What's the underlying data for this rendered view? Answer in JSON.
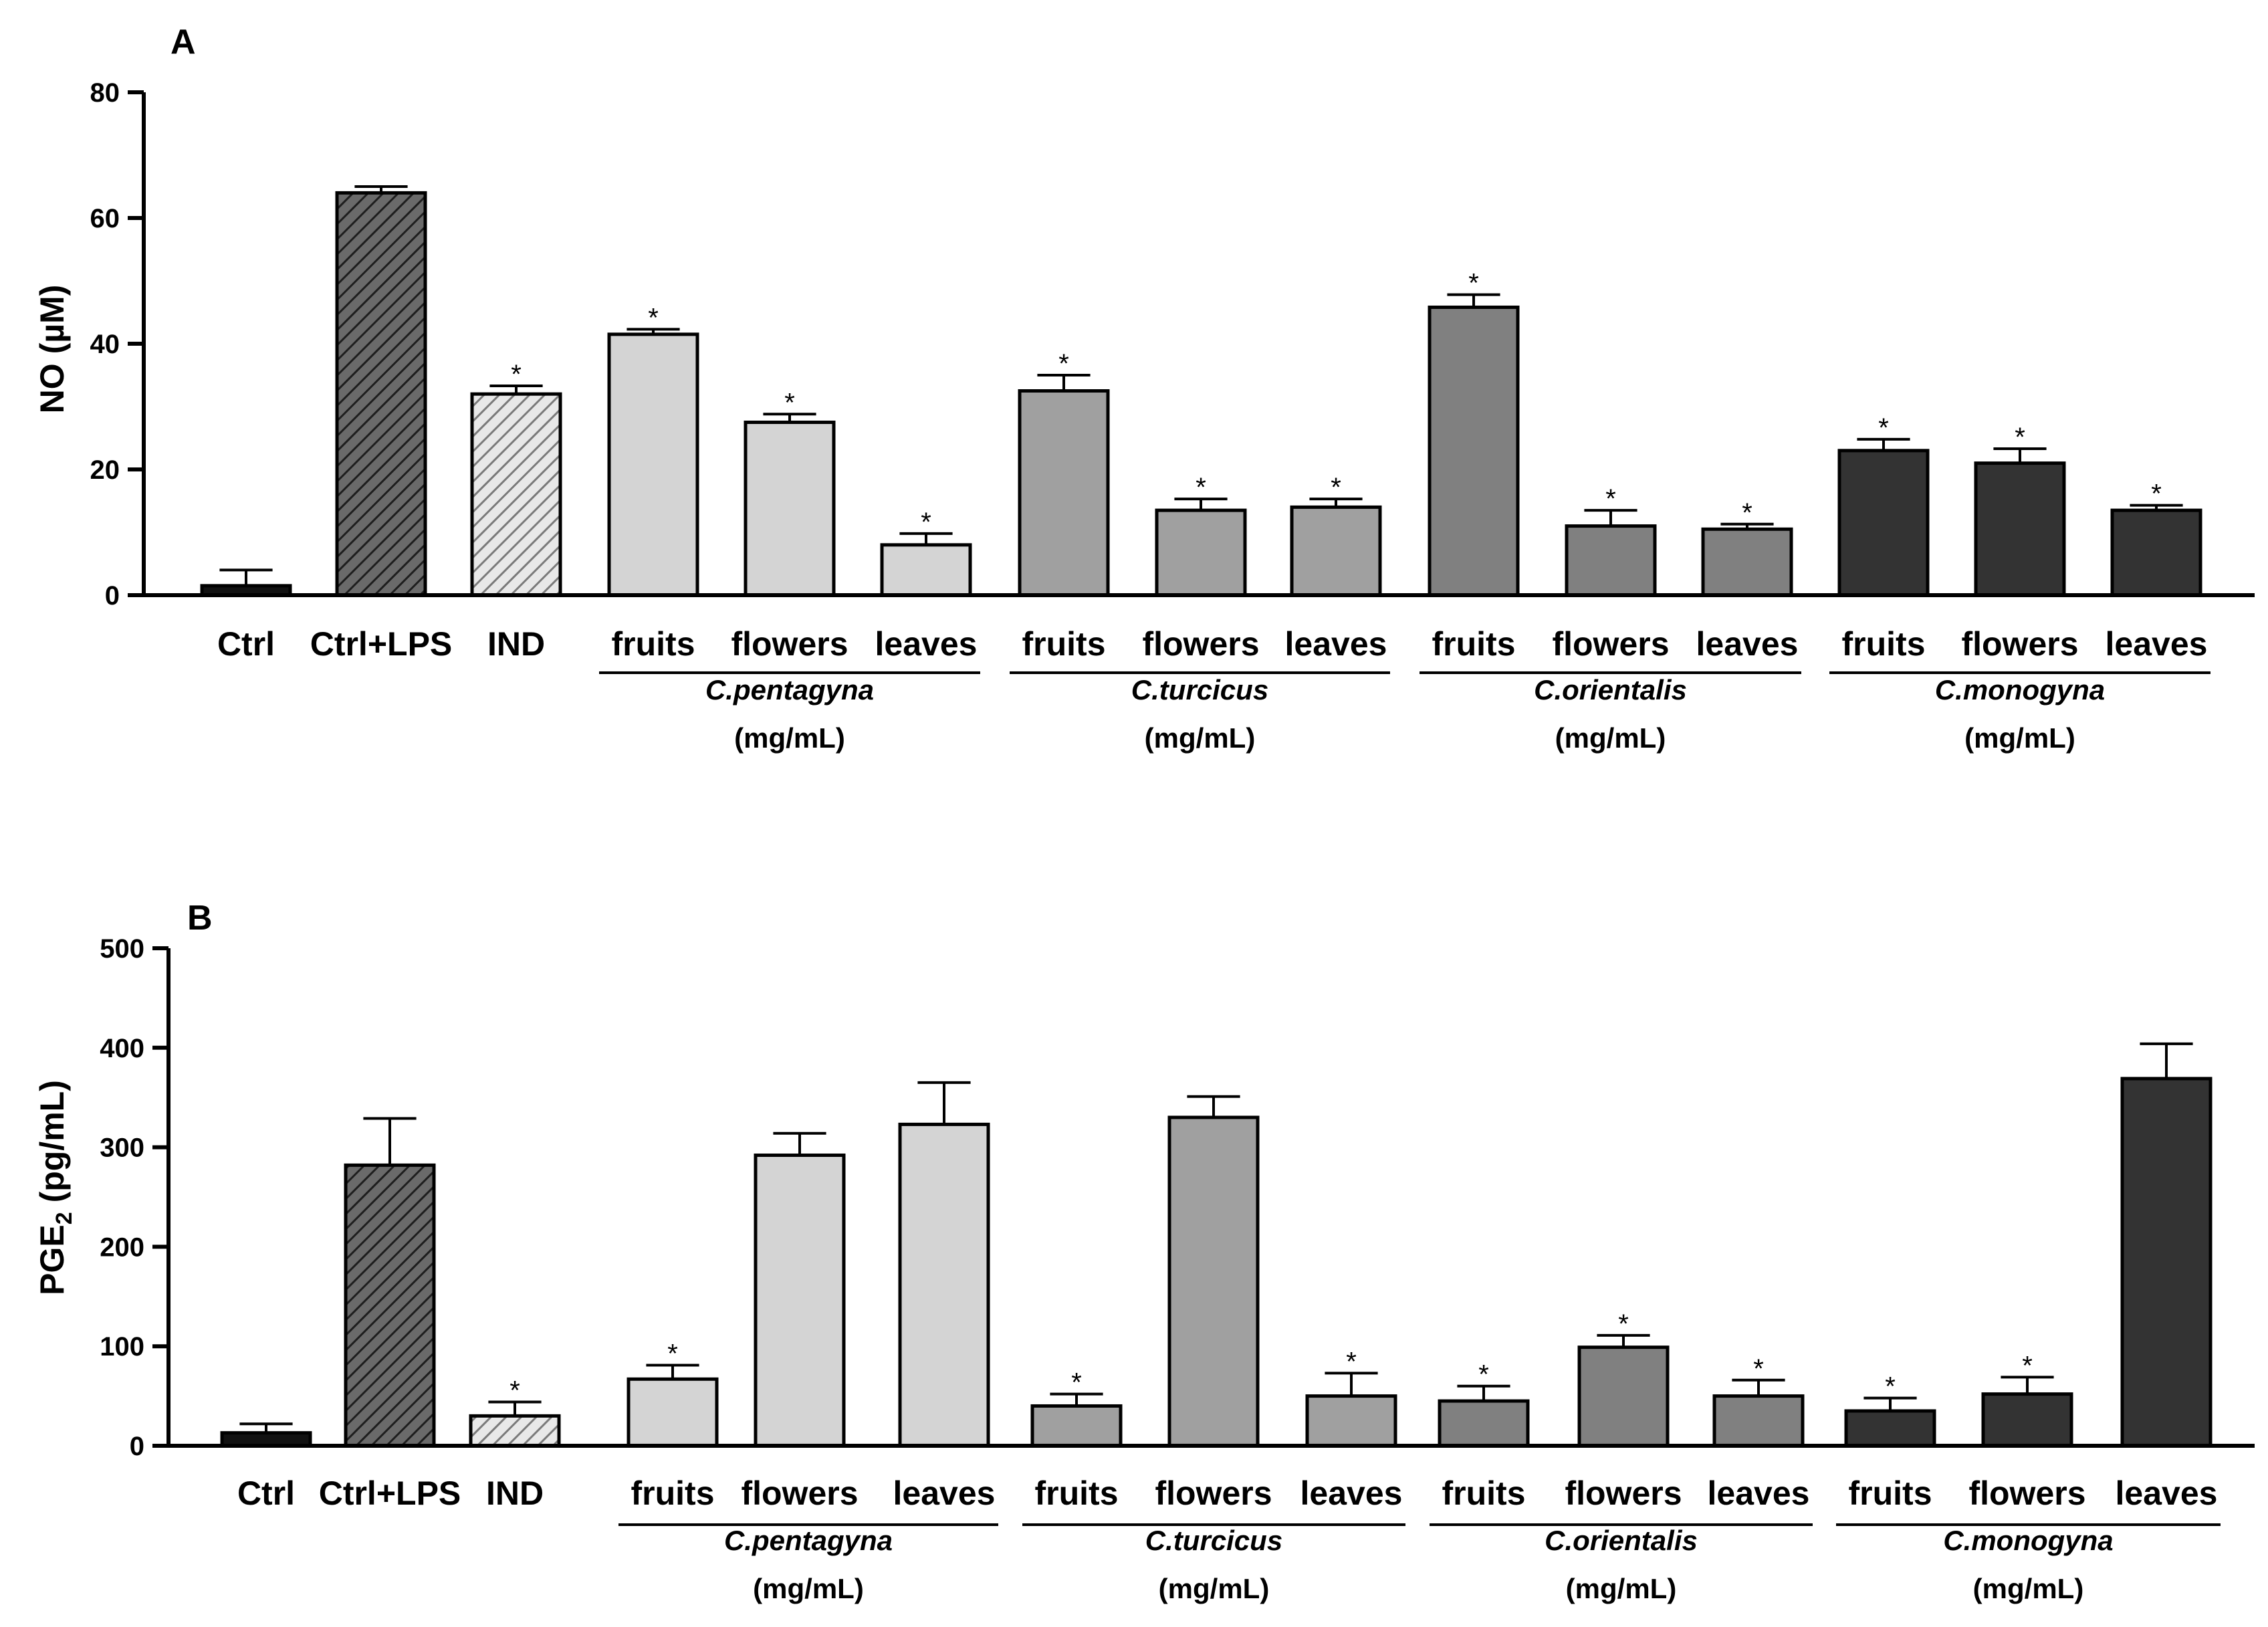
{
  "chart_data": [
    {
      "type": "bar",
      "panel_label": "A",
      "ylabel_main": "NO (µM)",
      "ylabel_sub": "",
      "ylabel_tail": "",
      "ylim": [
        0,
        80
      ],
      "yticks": [
        "0",
        "20",
        "40",
        "60",
        "80"
      ],
      "categories": [
        "Ctrl",
        "Ctrl+LPS",
        "IND",
        "fruits",
        "flowers",
        "leaves",
        "fruits",
        "flowers",
        "leaves",
        "fruits",
        "flowers",
        "leaves",
        "fruits",
        "flowers",
        "leaves"
      ],
      "values": [
        1.5,
        64,
        32,
        41.5,
        27.5,
        8,
        32.5,
        13.5,
        14,
        45.8,
        11,
        10.5,
        23,
        21,
        13.5
      ],
      "errors": [
        2.5,
        1,
        1.3,
        0.8,
        1.3,
        1.8,
        2.5,
        1.8,
        1.3,
        2,
        2.5,
        0.8,
        1.8,
        2.3,
        0.8
      ],
      "significant": [
        false,
        false,
        true,
        true,
        true,
        true,
        true,
        true,
        true,
        true,
        true,
        true,
        true,
        true,
        true
      ],
      "fills": [
        "#111111",
        "#666666",
        "#a8a8a8",
        "#d4d4d4",
        "#d4d4d4",
        "#d4d4d4",
        "#a0a0a0",
        "#a0a0a0",
        "#a0a0a0",
        "#808080",
        "#808080",
        "#808080",
        "#333333",
        "#333333",
        "#333333"
      ],
      "hatched": [
        false,
        true,
        true,
        false,
        false,
        false,
        false,
        false,
        false,
        false,
        false,
        false,
        false,
        false,
        false
      ],
      "groups": [
        {
          "species": "C.pentagyna",
          "unit": "(mg/mL)"
        },
        {
          "species": "C.turcicus",
          "unit": "(mg/mL)"
        },
        {
          "species": "C.orientalis",
          "unit": "(mg/mL)"
        },
        {
          "species": "C.monogyna",
          "unit": "(mg/mL)"
        }
      ]
    },
    {
      "type": "bar",
      "panel_label": "B",
      "ylabel_main": "PGE",
      "ylabel_sub": "2",
      "ylabel_tail": " (pg/mL)",
      "ylim": [
        0,
        500
      ],
      "yticks": [
        "0",
        "100",
        "200",
        "300",
        "400",
        "500"
      ],
      "categories": [
        "Ctrl",
        "Ctrl+LPS",
        "IND",
        "fruits",
        "flowers",
        "leaves",
        "fruits",
        "flowers",
        "leaves",
        "fruits",
        "flowers",
        "leaves",
        "fruits",
        "flowers",
        "leaves"
      ],
      "values": [
        13,
        282,
        30,
        67,
        292,
        323,
        40,
        330,
        50,
        45,
        99,
        50,
        35,
        52,
        369
      ],
      "errors": [
        9,
        47,
        14,
        14,
        22,
        42,
        12,
        21,
        23,
        15,
        12,
        16,
        13,
        17,
        35
      ],
      "significant": [
        false,
        false,
        true,
        true,
        false,
        false,
        true,
        false,
        true,
        true,
        true,
        true,
        true,
        true,
        false
      ],
      "fills": [
        "#111111",
        "#666666",
        "#a8a8a8",
        "#d4d4d4",
        "#d4d4d4",
        "#d4d4d4",
        "#a0a0a0",
        "#a0a0a0",
        "#a0a0a0",
        "#808080",
        "#808080",
        "#808080",
        "#333333",
        "#333333",
        "#333333"
      ],
      "hatched": [
        false,
        true,
        true,
        false,
        false,
        false,
        false,
        false,
        false,
        false,
        false,
        false,
        false,
        false,
        false
      ],
      "groups": [
        {
          "species": "C.pentagyna",
          "unit": "(mg/mL)"
        },
        {
          "species": "C.turcicus",
          "unit": "(mg/mL)"
        },
        {
          "species": "C.orientalis",
          "unit": "(mg/mL)"
        },
        {
          "species": "C.monogyna",
          "unit": "(mg/mL)"
        }
      ]
    }
  ],
  "significance_mark": "*"
}
